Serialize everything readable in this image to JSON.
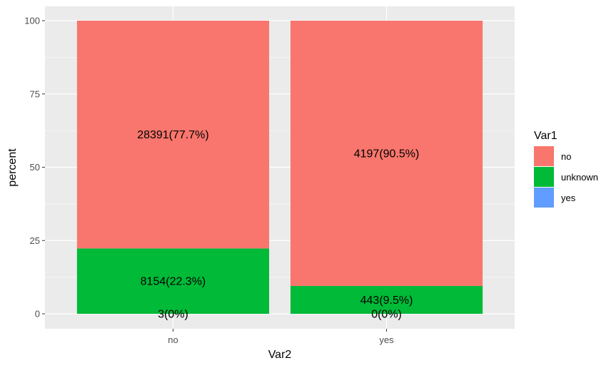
{
  "chart_data": {
    "type": "bar",
    "stacked": true,
    "categories": [
      "no",
      "yes"
    ],
    "xlabel": "Var2",
    "ylabel": "percent",
    "ylim": [
      0,
      100
    ],
    "yticks": [
      0,
      25,
      50,
      75,
      100
    ],
    "grid": true,
    "legend": {
      "title": "Var1",
      "placement": "right"
    },
    "series": [
      {
        "name": "yes",
        "color": "#619CFF",
        "values": [
          0.0,
          0.0
        ],
        "labels": [
          "3(0%)",
          "0(0%)"
        ]
      },
      {
        "name": "unknown",
        "color": "#00BA38",
        "values": [
          22.3,
          9.5
        ],
        "labels": [
          "8154(22.3%)",
          "443(9.5%)"
        ]
      },
      {
        "name": "no",
        "color": "#F8766D",
        "values": [
          77.7,
          90.5
        ],
        "labels": [
          "28391(77.7%)",
          "4197(90.5%)"
        ]
      }
    ],
    "legend_order": [
      "no",
      "unknown",
      "yes"
    ],
    "panel_background": "#EBEBEB"
  }
}
